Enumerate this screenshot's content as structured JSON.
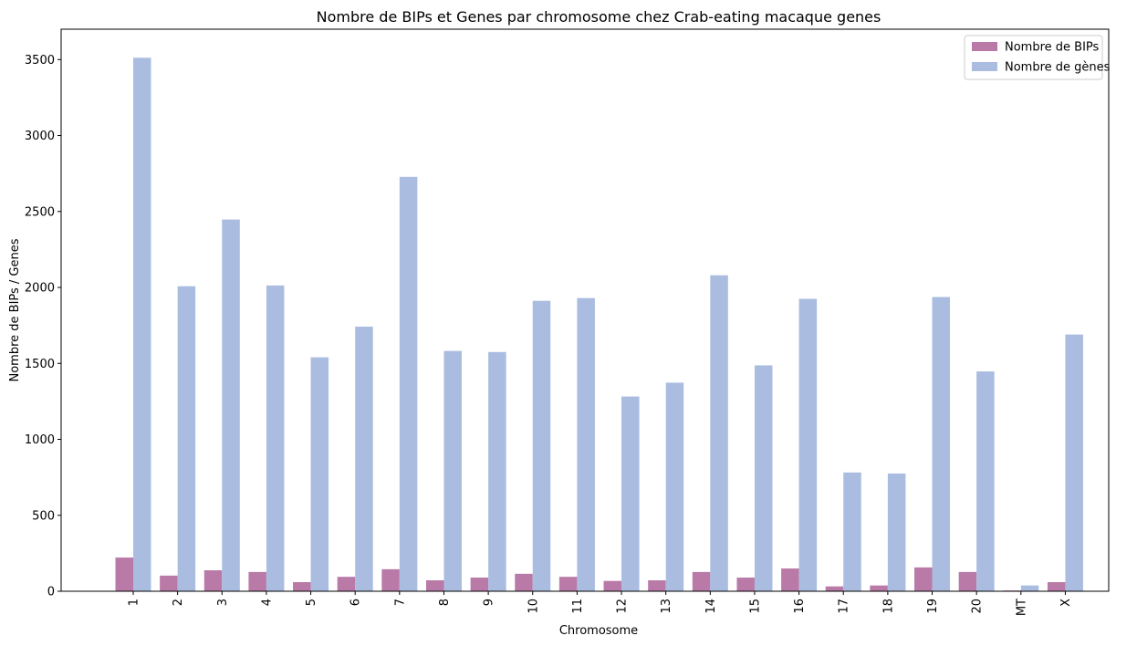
{
  "chart_data": {
    "type": "bar",
    "title": "Nombre de BIPs et Genes par chromosome chez Crab-eating macaque genes",
    "xlabel": "Chromosome",
    "ylabel": "Nombre de BIPs / Genes",
    "ylim": [
      0,
      3700
    ],
    "yticks": [
      0,
      500,
      1000,
      1500,
      2000,
      2500,
      3000,
      3500
    ],
    "legend_position": "top-right",
    "grid": false,
    "categories": [
      "1",
      "2",
      "3",
      "4",
      "5",
      "6",
      "7",
      "8",
      "9",
      "10",
      "11",
      "12",
      "13",
      "14",
      "15",
      "16",
      "17",
      "18",
      "19",
      "20",
      "MT",
      "X"
    ],
    "series": [
      {
        "name": "Nombre de BIPs",
        "color": "#b97aa8",
        "values": [
          222,
          103,
          138,
          127,
          60,
          95,
          145,
          72,
          90,
          115,
          95,
          68,
          72,
          127,
          90,
          150,
          32,
          38,
          157,
          127,
          5,
          60
        ]
      },
      {
        "name": "Nombre de gènes",
        "color": "#aabce0",
        "values": [
          3512,
          2008,
          2447,
          2013,
          1540,
          1742,
          2728,
          1582,
          1575,
          1912,
          1930,
          1282,
          1373,
          2080,
          1487,
          1925,
          782,
          775,
          1937,
          1447,
          38,
          1690
        ]
      }
    ]
  }
}
